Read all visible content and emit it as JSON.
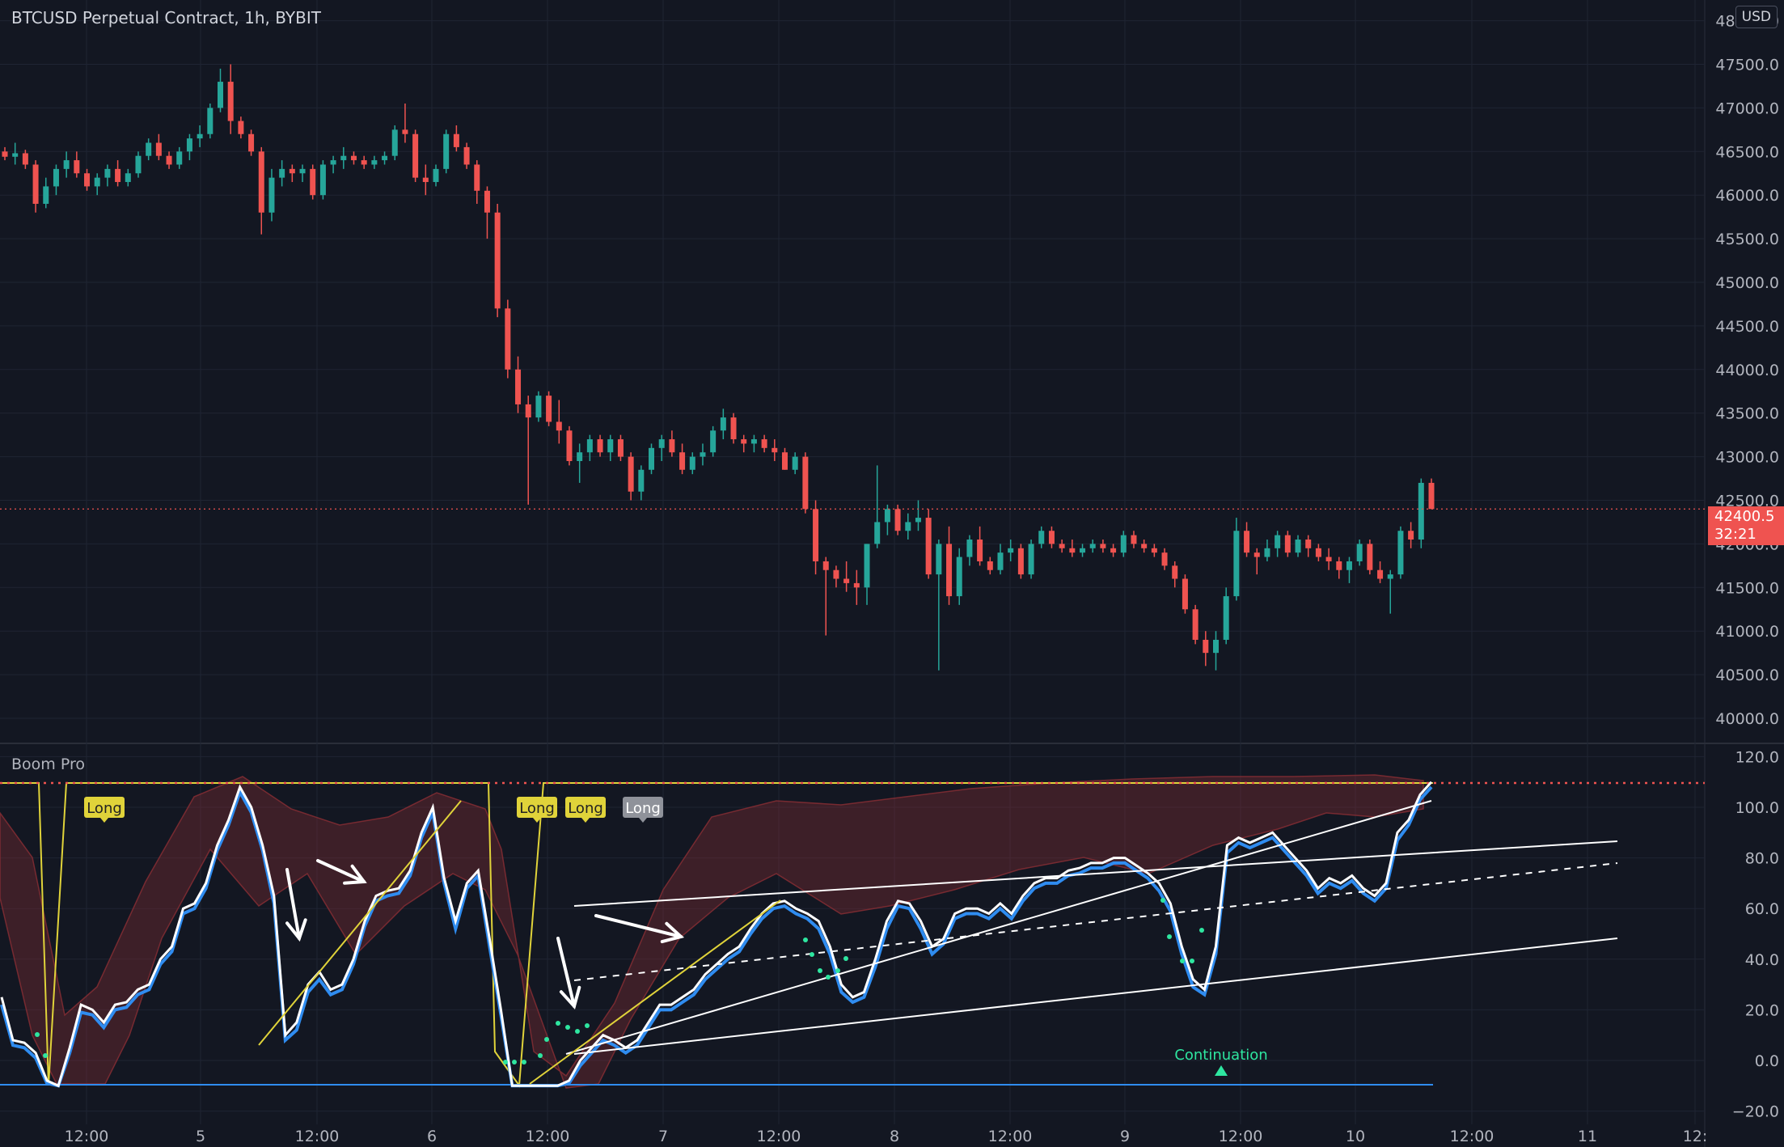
{
  "header": {
    "symbol_title": "BTCUSD Perpetual Contract, 1h, BYBIT",
    "currency_badge": "USD",
    "indicator_title": "Boom Pro"
  },
  "price_tag": {
    "value": "42400.5",
    "countdown": "32:21"
  },
  "colors": {
    "background": "#131722",
    "bull": "#26a69a",
    "bear": "#ef5350",
    "grid": "#1f2433",
    "osc_white": "#ffffff",
    "osc_blue": "#2f8cf0",
    "band": "#8b2e35",
    "signal_yellow": "#e0d33a",
    "dots": "#2ee6a0"
  },
  "chart_data": [
    {
      "type": "candlestick",
      "title": "BTCUSD Perpetual Contract, 1h, BYBIT",
      "y_ticks": [
        "40000.0",
        "40500.0",
        "41000.0",
        "41500.0",
        "42000.0",
        "42500.0",
        "43000.0",
        "43500.0",
        "44000.0",
        "44500.0",
        "45000.0",
        "45500.0",
        "46000.0",
        "46500.0",
        "47000.0",
        "47500.0",
        "48000.0"
      ],
      "ylim": [
        39900,
        48200
      ],
      "current_price": 42400.5,
      "x_ticks": [
        "12:00",
        "5",
        "12:00",
        "6",
        "12:00",
        "7",
        "12:00",
        "8",
        "12:00",
        "9",
        "12:00",
        "10",
        "12:00",
        "11",
        "12:"
      ],
      "grid": true,
      "candles": [
        [
          46500,
          46550,
          46400,
          46440
        ],
        [
          46440,
          46600,
          46350,
          46480
        ],
        [
          46480,
          46520,
          46300,
          46350
        ],
        [
          46350,
          46400,
          45800,
          45900
        ],
        [
          45900,
          46200,
          45850,
          46100
        ],
        [
          46100,
          46350,
          46000,
          46300
        ],
        [
          46300,
          46500,
          46200,
          46400
        ],
        [
          46400,
          46500,
          46200,
          46250
        ],
        [
          46250,
          46300,
          46050,
          46100
        ],
        [
          46100,
          46250,
          46000,
          46200
        ],
        [
          46200,
          46350,
          46100,
          46300
        ],
        [
          46300,
          46400,
          46100,
          46150
        ],
        [
          46150,
          46300,
          46100,
          46250
        ],
        [
          46250,
          46500,
          46200,
          46450
        ],
        [
          46450,
          46650,
          46400,
          46600
        ],
        [
          46600,
          46700,
          46400,
          46450
        ],
        [
          46450,
          46500,
          46300,
          46350
        ],
        [
          46350,
          46550,
          46300,
          46500
        ],
        [
          46500,
          46700,
          46400,
          46650
        ],
        [
          46650,
          46800,
          46550,
          46700
        ],
        [
          46700,
          47050,
          46650,
          47000
        ],
        [
          47000,
          47450,
          46950,
          47300
        ],
        [
          47300,
          47500,
          46700,
          46850
        ],
        [
          46850,
          46900,
          46650,
          46700
        ],
        [
          46700,
          46750,
          46450,
          46500
        ],
        [
          46500,
          46550,
          45550,
          45800
        ],
        [
          45800,
          46300,
          45700,
          46200
        ],
        [
          46200,
          46400,
          46100,
          46300
        ],
        [
          46300,
          46350,
          46150,
          46250
        ],
        [
          46250,
          46350,
          46150,
          46300
        ],
        [
          46300,
          46350,
          45950,
          46000
        ],
        [
          46000,
          46400,
          45950,
          46350
        ],
        [
          46350,
          46450,
          46250,
          46400
        ],
        [
          46400,
          46550,
          46300,
          46450
        ],
        [
          46450,
          46500,
          46350,
          46400
        ],
        [
          46400,
          46450,
          46300,
          46350
        ],
        [
          46350,
          46450,
          46300,
          46400
        ],
        [
          46400,
          46500,
          46350,
          46450
        ],
        [
          46450,
          46800,
          46400,
          46750
        ],
        [
          46750,
          47050,
          46600,
          46700
        ],
        [
          46700,
          46750,
          46150,
          46200
        ],
        [
          46200,
          46350,
          46000,
          46150
        ],
        [
          46150,
          46350,
          46100,
          46300
        ],
        [
          46300,
          46750,
          46250,
          46700
        ],
        [
          46700,
          46800,
          46500,
          46550
        ],
        [
          46550,
          46600,
          46300,
          46350
        ],
        [
          46350,
          46400,
          45900,
          46050
        ],
        [
          46050,
          46100,
          45500,
          45800
        ],
        [
          45800,
          45900,
          44600,
          44700
        ],
        [
          44700,
          44800,
          43900,
          44000
        ],
        [
          44000,
          44150,
          43500,
          43600
        ],
        [
          43600,
          43700,
          42450,
          43450
        ],
        [
          43450,
          43750,
          43400,
          43700
        ],
        [
          43700,
          43750,
          43350,
          43400
        ],
        [
          43400,
          43650,
          43150,
          43300
        ],
        [
          43300,
          43350,
          42900,
          42950
        ],
        [
          42950,
          43150,
          42700,
          43050
        ],
        [
          43050,
          43250,
          42950,
          43200
        ],
        [
          43200,
          43250,
          43000,
          43050
        ],
        [
          43050,
          43250,
          42950,
          43200
        ],
        [
          43200,
          43250,
          42950,
          43000
        ],
        [
          43000,
          43050,
          42500,
          42600
        ],
        [
          42600,
          42900,
          42500,
          42850
        ],
        [
          42850,
          43150,
          42800,
          43100
        ],
        [
          43100,
          43250,
          42950,
          43200
        ],
        [
          43200,
          43300,
          43000,
          43050
        ],
        [
          43050,
          43150,
          42800,
          42850
        ],
        [
          42850,
          43050,
          42800,
          43000
        ],
        [
          43000,
          43150,
          42900,
          43050
        ],
        [
          43050,
          43350,
          43000,
          43300
        ],
        [
          43300,
          43550,
          43200,
          43450
        ],
        [
          43450,
          43500,
          43150,
          43200
        ],
        [
          43200,
          43250,
          43050,
          43150
        ],
        [
          43150,
          43250,
          43050,
          43200
        ],
        [
          43200,
          43250,
          43050,
          43100
        ],
        [
          43100,
          43200,
          42950,
          43050
        ],
        [
          43050,
          43100,
          42850,
          42850
        ],
        [
          42850,
          43050,
          42800,
          43000
        ],
        [
          43000,
          43050,
          42350,
          42400
        ],
        [
          42400,
          42500,
          41650,
          41800
        ],
        [
          41800,
          41850,
          40950,
          41700
        ],
        [
          41700,
          41750,
          41500,
          41600
        ],
        [
          41600,
          41800,
          41450,
          41550
        ],
        [
          41550,
          41700,
          41300,
          41500
        ],
        [
          41500,
          42000,
          41300,
          42000
        ],
        [
          42000,
          42900,
          41950,
          42250
        ],
        [
          42250,
          42450,
          42100,
          42400
        ],
        [
          42400,
          42450,
          42100,
          42150
        ],
        [
          42150,
          42350,
          42050,
          42250
        ],
        [
          42250,
          42500,
          42150,
          42300
        ],
        [
          42300,
          42400,
          41600,
          41650
        ],
        [
          41650,
          42050,
          40550,
          42000
        ],
        [
          42000,
          42200,
          41300,
          41400
        ],
        [
          41400,
          41950,
          41300,
          41850
        ],
        [
          41850,
          42100,
          41750,
          42050
        ],
        [
          42050,
          42200,
          41750,
          41800
        ],
        [
          41800,
          41850,
          41650,
          41700
        ],
        [
          41700,
          42000,
          41650,
          41900
        ],
        [
          41900,
          42050,
          41800,
          41950
        ],
        [
          41950,
          42000,
          41600,
          41650
        ],
        [
          41650,
          42050,
          41600,
          42000
        ],
        [
          42000,
          42200,
          41950,
          42150
        ],
        [
          42150,
          42200,
          41950,
          42000
        ],
        [
          42000,
          42050,
          41900,
          41950
        ],
        [
          41950,
          42050,
          41850,
          41900
        ],
        [
          41900,
          42000,
          41850,
          41950
        ],
        [
          41950,
          42050,
          41900,
          42000
        ],
        [
          42000,
          42050,
          41900,
          41950
        ],
        [
          41950,
          42000,
          41850,
          41900
        ],
        [
          41900,
          42150,
          41850,
          42100
        ],
        [
          42100,
          42150,
          41950,
          42000
        ],
        [
          42000,
          42050,
          41900,
          41950
        ],
        [
          41950,
          42000,
          41850,
          41900
        ],
        [
          41900,
          41950,
          41700,
          41750
        ],
        [
          41750,
          41800,
          41500,
          41600
        ],
        [
          41600,
          41650,
          41200,
          41250
        ],
        [
          41250,
          41300,
          40850,
          40900
        ],
        [
          40900,
          41000,
          40600,
          40750
        ],
        [
          40750,
          41000,
          40550,
          40900
        ],
        [
          40900,
          41500,
          40850,
          41400
        ],
        [
          41400,
          42300,
          41350,
          42150
        ],
        [
          42150,
          42250,
          41850,
          41900
        ],
        [
          41900,
          41950,
          41650,
          41850
        ],
        [
          41850,
          42050,
          41800,
          41950
        ],
        [
          41950,
          42150,
          41850,
          42100
        ],
        [
          42100,
          42150,
          41850,
          41900
        ],
        [
          41900,
          42100,
          41850,
          42050
        ],
        [
          42050,
          42100,
          41850,
          41950
        ],
        [
          41950,
          42000,
          41800,
          41850
        ],
        [
          41850,
          41950,
          41700,
          41800
        ],
        [
          41800,
          41850,
          41600,
          41700
        ],
        [
          41700,
          41850,
          41550,
          41800
        ],
        [
          41800,
          42050,
          41750,
          42000
        ],
        [
          42000,
          42050,
          41650,
          41700
        ],
        [
          41700,
          41800,
          41550,
          41600
        ],
        [
          41600,
          41700,
          41200,
          41650
        ],
        [
          41650,
          42200,
          41600,
          42150
        ],
        [
          42150,
          42250,
          41950,
          42050
        ],
        [
          42050,
          42750,
          41950,
          42700
        ],
        [
          42700,
          42750,
          42400,
          42400
        ]
      ]
    },
    {
      "type": "line",
      "title": "Boom Pro",
      "y_ticks": [
        "−20.0",
        "0.0",
        "20.0",
        "40.0",
        "60.0",
        "80.0",
        "100.0",
        "120.0"
      ],
      "ylim": [
        -24,
        125
      ],
      "grid": true,
      "series": [
        {
          "values": [
            25,
            8,
            7,
            3,
            -8,
            -10,
            5,
            22,
            20,
            15,
            22,
            23,
            28,
            30,
            40,
            45,
            60,
            62,
            70,
            85,
            95,
            108,
            100,
            85,
            65,
            10,
            15,
            30,
            35,
            28,
            30,
            40,
            55,
            65,
            67,
            68,
            75,
            90,
            100,
            72,
            55,
            70,
            75,
            48,
            20,
            -10,
            -10,
            -10,
            -10,
            -10,
            -8,
            0,
            5,
            10,
            8,
            5,
            8,
            15,
            22,
            22,
            25,
            28,
            34,
            38,
            42,
            45,
            52,
            58,
            62,
            63,
            60,
            58,
            55,
            45,
            30,
            25,
            27,
            40,
            55,
            63,
            62,
            55,
            45,
            48,
            58,
            60,
            60,
            58,
            62,
            58,
            65,
            70,
            72,
            72,
            75,
            76,
            78,
            78,
            80,
            80,
            77,
            74,
            70,
            62,
            45,
            32,
            28,
            45,
            85,
            88,
            86,
            88,
            90,
            85,
            80,
            75,
            68,
            72,
            70,
            73,
            68,
            65,
            70,
            90,
            95,
            105,
            110
          ]
        },
        {
          "values": [
            22,
            6,
            5,
            1,
            -9,
            -10,
            3,
            19,
            18,
            13,
            20,
            21,
            26,
            28,
            38,
            43,
            58,
            60,
            68,
            83,
            93,
            106,
            98,
            83,
            62,
            8,
            12,
            27,
            32,
            26,
            28,
            38,
            53,
            63,
            65,
            66,
            73,
            88,
            98,
            70,
            52,
            68,
            73,
            45,
            18,
            -10,
            -10,
            -10,
            -10,
            -10,
            -9,
            -2,
            3,
            8,
            6,
            3,
            6,
            13,
            20,
            20,
            23,
            26,
            32,
            36,
            40,
            43,
            50,
            56,
            60,
            61,
            58,
            56,
            52,
            42,
            27,
            23,
            25,
            37,
            52,
            61,
            60,
            52,
            42,
            46,
            56,
            58,
            58,
            56,
            60,
            56,
            63,
            68,
            70,
            70,
            73,
            74,
            76,
            76,
            78,
            78,
            75,
            72,
            67,
            59,
            42,
            29,
            26,
            42,
            82,
            86,
            84,
            86,
            88,
            83,
            78,
            73,
            66,
            70,
            68,
            71,
            66,
            63,
            68,
            87,
            93,
            103,
            108
          ]
        }
      ],
      "signals": [
        "Long",
        "Long",
        "Long",
        "Long"
      ],
      "annotation": "Continuation"
    }
  ]
}
